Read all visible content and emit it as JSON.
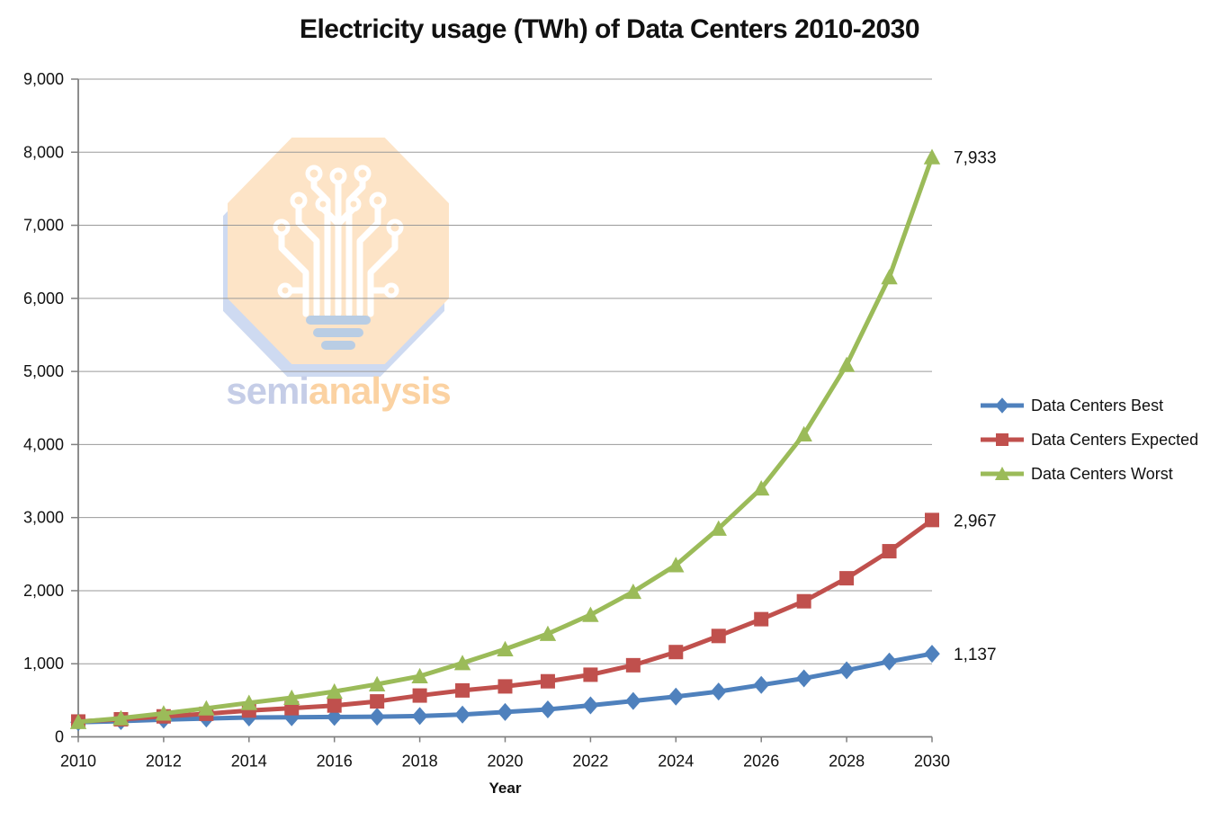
{
  "chart_data": {
    "type": "line",
    "title": "Electricity usage (TWh) of Data Centers 2010-2030",
    "xlabel": "Year",
    "ylabel": "",
    "x": [
      2010,
      2011,
      2012,
      2013,
      2014,
      2015,
      2016,
      2017,
      2018,
      2019,
      2020,
      2021,
      2022,
      2023,
      2024,
      2025,
      2026,
      2027,
      2028,
      2029,
      2030
    ],
    "x_tick_step": 2,
    "ylim": [
      0,
      9000
    ],
    "ytick_interval": 1000,
    "grid": "horizontal-only",
    "legend_position": "right",
    "series": [
      {
        "name": "Data Centers Best",
        "color": "#4F81BD",
        "marker": "diamond",
        "values": [
          200,
          215,
          235,
          250,
          265,
          268,
          272,
          276,
          285,
          305,
          340,
          375,
          430,
          490,
          550,
          620,
          710,
          800,
          910,
          1030,
          1137
        ],
        "end_label": "1,137"
      },
      {
        "name": "Data Centers Expected",
        "color": "#C0504D",
        "marker": "square",
        "values": [
          210,
          240,
          280,
          315,
          360,
          392,
          428,
          485,
          565,
          635,
          690,
          760,
          850,
          980,
          1160,
          1380,
          1610,
          1855,
          2170,
          2540,
          2967
        ],
        "end_label": "2,967"
      },
      {
        "name": "Data Centers Worst",
        "color": "#9BBB59",
        "marker": "triangle",
        "values": [
          205,
          255,
          320,
          390,
          465,
          535,
          620,
          720,
          830,
          1010,
          1200,
          1410,
          1670,
          1985,
          2350,
          2850,
          3400,
          4140,
          5090,
          6290,
          7933
        ],
        "end_label": "7,933"
      }
    ],
    "axis_color": "#808080",
    "gridline_color": "#9a9a9a",
    "label_color": "#111111"
  },
  "watermark": {
    "brand_part1": "semi",
    "brand_part2": "analysis",
    "octagon_color": "#FDE4C7",
    "shadow_color": "#C6D4EE"
  }
}
